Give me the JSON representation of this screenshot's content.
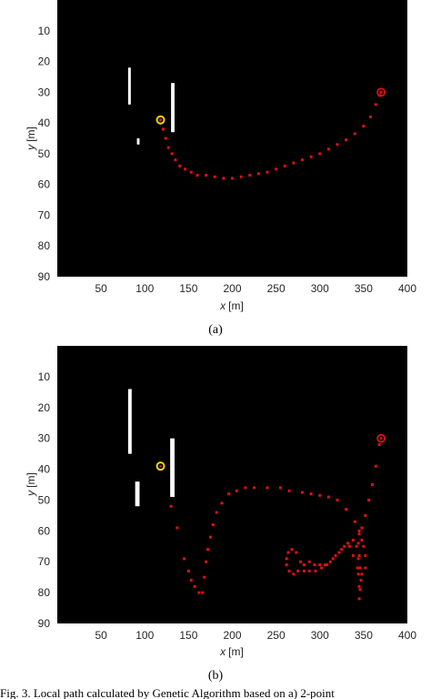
{
  "chart_data": [
    {
      "type": "scatter",
      "panel_label": "(a)",
      "xlabel_var": "x",
      "xlabel_unit": "[m]",
      "ylabel_var": "y",
      "ylabel_unit": "[m]",
      "xlim": [
        0,
        400
      ],
      "ylim": [
        0,
        90
      ],
      "y_reversed": true,
      "xticks": [
        50,
        100,
        150,
        200,
        250,
        300,
        350,
        400
      ],
      "yticks": [
        10,
        20,
        30,
        40,
        50,
        60,
        70,
        80,
        90
      ],
      "grid": false,
      "background": "#000000",
      "obstacles": [
        {
          "x0": 81,
          "x1": 84,
          "y0": 22,
          "y1": 34
        },
        {
          "x0": 91,
          "x1": 94,
          "y0": 45,
          "y1": 47
        },
        {
          "x0": 130,
          "x1": 134,
          "y0": 27,
          "y1": 43
        }
      ],
      "start": {
        "x": 118,
        "y": 39,
        "color": "#f2d600"
      },
      "goal": {
        "x": 370,
        "y": 30,
        "color": "#e01010"
      },
      "path_color": "#e01010",
      "path": [
        [
          118,
          39
        ],
        [
          121,
          42
        ],
        [
          124,
          45
        ],
        [
          127,
          48
        ],
        [
          131,
          50
        ],
        [
          135,
          52
        ],
        [
          140,
          54
        ],
        [
          146,
          55
        ],
        [
          153,
          56
        ],
        [
          160,
          57
        ],
        [
          170,
          57
        ],
        [
          180,
          57.5
        ],
        [
          190,
          58
        ],
        [
          200,
          58
        ],
        [
          210,
          57.5
        ],
        [
          220,
          57
        ],
        [
          230,
          56.5
        ],
        [
          240,
          56
        ],
        [
          250,
          55
        ],
        [
          260,
          54
        ],
        [
          270,
          53
        ],
        [
          280,
          52
        ],
        [
          290,
          51
        ],
        [
          300,
          50
        ],
        [
          310,
          48.5
        ],
        [
          320,
          47
        ],
        [
          330,
          45.5
        ],
        [
          340,
          43.5
        ],
        [
          350,
          41
        ],
        [
          358,
          38
        ],
        [
          364,
          34
        ],
        [
          368,
          31
        ],
        [
          370,
          30
        ]
      ]
    },
    {
      "type": "scatter",
      "panel_label": "(b)",
      "xlabel_var": "x",
      "xlabel_unit": "[m]",
      "ylabel_var": "y",
      "ylabel_unit": "[m]",
      "xlim": [
        0,
        400
      ],
      "ylim": [
        0,
        90
      ],
      "y_reversed": true,
      "xticks": [
        50,
        100,
        150,
        200,
        250,
        300,
        350,
        400
      ],
      "yticks": [
        10,
        20,
        30,
        40,
        50,
        60,
        70,
        80,
        90
      ],
      "grid": false,
      "background": "#000000",
      "obstacles": [
        {
          "x0": 81,
          "x1": 85,
          "y0": 14,
          "y1": 35
        },
        {
          "x0": 89,
          "x1": 94,
          "y0": 44,
          "y1": 52
        },
        {
          "x0": 129,
          "x1": 134,
          "y0": 30,
          "y1": 49
        }
      ],
      "start": {
        "x": 118,
        "y": 39,
        "color": "#f2d600"
      },
      "goal": {
        "x": 370,
        "y": 30,
        "color": "#e01010"
      },
      "path_color": "#e01010",
      "path": [
        [
          130,
          52
        ],
        [
          137,
          59
        ],
        [
          145,
          69
        ],
        [
          150,
          73
        ],
        [
          153,
          76
        ],
        [
          157,
          78
        ],
        [
          162,
          80
        ],
        [
          166,
          80
        ],
        [
          168,
          75
        ],
        [
          170,
          70
        ],
        [
          172,
          66
        ],
        [
          175,
          62
        ],
        [
          178,
          58
        ],
        [
          182,
          54
        ],
        [
          188,
          51
        ],
        [
          196,
          48
        ],
        [
          205,
          47
        ],
        [
          215,
          46
        ],
        [
          225,
          46
        ],
        [
          240,
          46
        ],
        [
          255,
          46
        ],
        [
          265,
          47
        ],
        [
          280,
          47.5
        ],
        [
          290,
          48
        ],
        [
          300,
          48.5
        ],
        [
          310,
          49
        ],
        [
          320,
          50
        ],
        [
          330,
          53
        ],
        [
          340,
          57
        ],
        [
          345,
          60
        ],
        [
          348,
          63
        ],
        [
          350,
          65
        ],
        [
          352,
          68
        ],
        [
          352,
          72
        ],
        [
          348,
          74
        ],
        [
          343,
          72
        ],
        [
          338,
          68
        ],
        [
          334,
          65
        ],
        [
          328,
          65
        ],
        [
          322,
          67
        ],
        [
          315,
          69
        ],
        [
          308,
          71
        ],
        [
          302,
          72
        ],
        [
          295,
          73
        ],
        [
          288,
          73
        ],
        [
          282,
          73
        ],
        [
          278,
          70
        ],
        [
          273,
          67
        ],
        [
          268,
          66
        ],
        [
          264,
          67
        ],
        [
          262,
          69
        ],
        [
          262,
          71
        ],
        [
          265,
          73
        ],
        [
          270,
          74
        ],
        [
          275,
          73
        ],
        [
          282,
          71
        ],
        [
          288,
          70
        ],
        [
          294,
          71
        ],
        [
          300,
          71
        ],
        [
          306,
          71
        ],
        [
          312,
          70
        ],
        [
          318,
          68
        ],
        [
          325,
          66
        ],
        [
          332,
          64
        ],
        [
          338,
          63
        ],
        [
          342,
          65
        ],
        [
          345,
          68
        ],
        [
          346,
          72
        ],
        [
          347,
          76
        ],
        [
          346,
          79
        ],
        [
          345,
          82
        ],
        [
          345,
          78
        ],
        [
          344,
          74
        ],
        [
          344,
          69
        ],
        [
          344,
          64
        ],
        [
          345,
          61
        ],
        [
          348,
          59
        ],
        [
          352,
          55
        ],
        [
          356,
          50
        ],
        [
          360,
          45
        ],
        [
          364,
          39
        ],
        [
          368,
          32
        ]
      ]
    }
  ],
  "caption": "Fig. 3.   Local path calculated by Genetic Algorithm based on a) 2-point"
}
